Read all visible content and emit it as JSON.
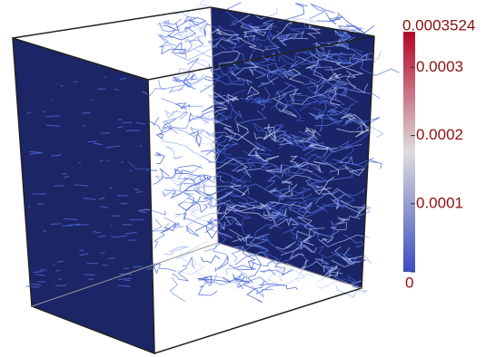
{
  "colorbar": {
    "range": [
      0,
      0.0003524
    ],
    "ticks": [
      0,
      0.0001,
      0.0002,
      0.0003
    ]
  }
}
